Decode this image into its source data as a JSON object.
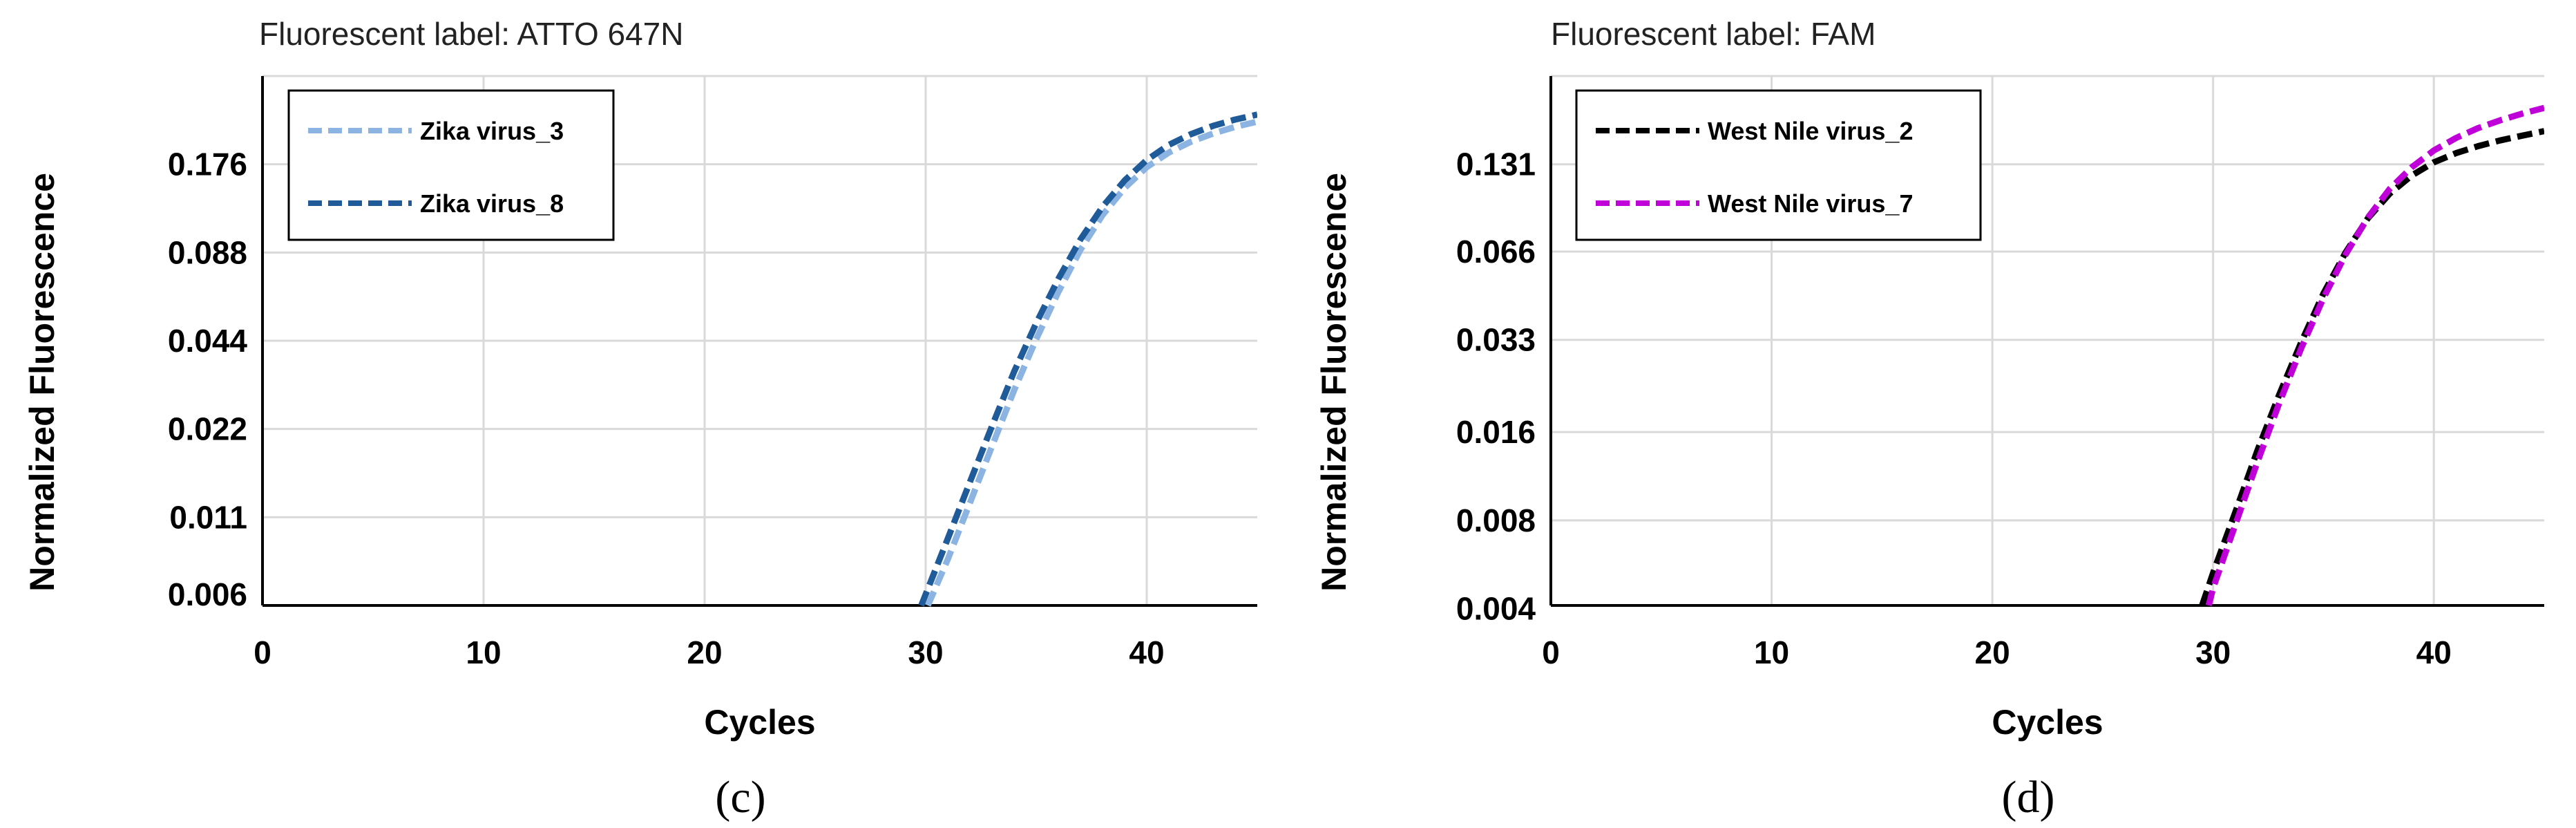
{
  "chart_data": [
    {
      "type": "line",
      "panel_label": "(c)",
      "title": "Fluorescent label: ATTO 647N",
      "xlabel": "Cycles",
      "ylabel": "Normalized Fluorescence",
      "y_scale": "log",
      "x_ticks": [
        "0",
        "10",
        "20",
        "30",
        "40"
      ],
      "y_ticks": [
        "0.006",
        "0.011",
        "0.022",
        "0.044",
        "0.088",
        "0.176"
      ],
      "xlim": [
        0,
        45
      ],
      "ylim": [
        0.0055,
        0.352
      ],
      "grid": true,
      "legend_position": "top-left",
      "series": [
        {
          "name": "Zika virus_3",
          "color": "#8cb4e2",
          "x": [
            30.1,
            31,
            32,
            33,
            34,
            35,
            36,
            37,
            38,
            39,
            40,
            41,
            42,
            43,
            44,
            45
          ],
          "y": [
            0.0055,
            0.0079,
            0.0123,
            0.0192,
            0.0298,
            0.0445,
            0.0645,
            0.0898,
            0.118,
            0.146,
            0.172,
            0.193,
            0.21,
            0.224,
            0.236,
            0.246
          ]
        },
        {
          "name": "Zika virus_8",
          "color": "#1f5b99",
          "x": [
            29.8,
            31,
            32,
            33,
            34,
            35,
            36,
            37,
            38,
            39,
            40,
            41,
            42,
            43,
            44,
            45
          ],
          "y": [
            0.0055,
            0.0093,
            0.0145,
            0.0225,
            0.0345,
            0.0505,
            0.0715,
            0.0975,
            0.126,
            0.155,
            0.182,
            0.205,
            0.223,
            0.238,
            0.25,
            0.26
          ]
        }
      ]
    },
    {
      "type": "line",
      "panel_label": "(d)",
      "title": "Fluorescent label: FAM",
      "xlabel": "Cycles",
      "ylabel": "Normalized Fluorescence",
      "y_scale": "log",
      "x_ticks": [
        "0",
        "10",
        "20",
        "30",
        "40"
      ],
      "y_ticks": [
        "0.004",
        "0.008",
        "0.016",
        "0.033",
        "0.066",
        "0.131"
      ],
      "xlim": [
        0,
        45
      ],
      "ylim": [
        0.0041,
        0.262
      ],
      "grid": true,
      "legend_position": "top-left",
      "series": [
        {
          "name": "West Nile virus_2",
          "color": "#000000",
          "x": [
            29.5,
            30,
            31,
            32,
            33,
            34,
            35,
            36,
            37,
            38,
            39,
            40,
            41,
            42,
            43,
            44,
            45
          ],
          "y": [
            0.0041,
            0.0053,
            0.0085,
            0.0138,
            0.0215,
            0.0325,
            0.0475,
            0.0655,
            0.0855,
            0.104,
            0.12,
            0.133,
            0.143,
            0.151,
            0.158,
            0.164,
            0.17
          ]
        },
        {
          "name": "West Nile virus_7",
          "color": "#c000d8",
          "x": [
            29.8,
            30,
            31,
            32,
            33,
            34,
            35,
            36,
            37,
            38,
            39,
            40,
            41,
            42,
            43,
            44,
            45
          ],
          "y": [
            0.0041,
            0.0047,
            0.0077,
            0.0126,
            0.0201,
            0.031,
            0.0458,
            0.0645,
            0.086,
            0.108,
            0.128,
            0.146,
            0.161,
            0.174,
            0.185,
            0.195,
            0.204
          ]
        }
      ]
    }
  ]
}
